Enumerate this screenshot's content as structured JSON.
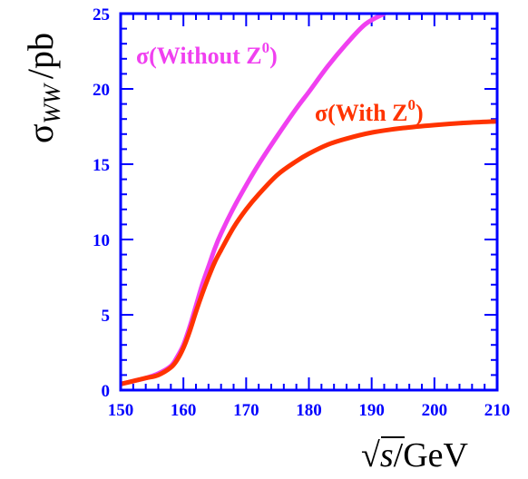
{
  "chart_data": {
    "type": "line",
    "title": "",
    "xlabel": "√s/GeV",
    "ylabel": "σWW /pb",
    "xlim": [
      150,
      210
    ],
    "ylim": [
      0,
      25
    ],
    "x_ticks": [
      150,
      160,
      170,
      180,
      190,
      200,
      210
    ],
    "y_ticks": [
      0,
      5,
      10,
      15,
      20,
      25
    ],
    "grid": false,
    "legend": "inline labels next to curves",
    "series": [
      {
        "name": "σ(Without Z⁰)",
        "color": "#f040f0",
        "x": [
          150,
          152,
          154,
          156,
          158,
          159,
          160,
          161,
          162,
          163,
          164,
          165,
          166,
          168,
          170,
          172,
          175,
          178,
          180,
          183,
          186,
          189,
          192
        ],
        "y": [
          0.4,
          0.6,
          0.8,
          1.1,
          1.6,
          2.2,
          3.0,
          4.2,
          5.6,
          7.0,
          8.2,
          9.4,
          10.4,
          12.1,
          13.6,
          15.0,
          16.9,
          18.7,
          19.8,
          21.5,
          23.0,
          24.3,
          25.0
        ]
      },
      {
        "name": "σ(With Z⁰)",
        "color": "#ff3300",
        "x": [
          150,
          152,
          154,
          156,
          158,
          159,
          160,
          161,
          162,
          163,
          164,
          165,
          166,
          168,
          170,
          172,
          175,
          178,
          180,
          183,
          186,
          190,
          195,
          200,
          205,
          210
        ],
        "y": [
          0.4,
          0.6,
          0.8,
          1.0,
          1.5,
          2.0,
          2.8,
          3.9,
          5.2,
          6.4,
          7.5,
          8.5,
          9.3,
          10.8,
          12.0,
          13.0,
          14.3,
          15.2,
          15.7,
          16.3,
          16.7,
          17.1,
          17.4,
          17.6,
          17.75,
          17.85
        ]
      }
    ],
    "series_labels": {
      "without": {
        "main": "σ(Without Z",
        "sup": "0",
        "close": ")"
      },
      "with": {
        "main": "σ(With Z",
        "sup": "0",
        "close": ")"
      }
    },
    "ylabel_parts": {
      "sigma": "σ",
      "sub": "WW",
      "unit": "/pb"
    },
    "xlabel_parts": {
      "root": "√",
      "var": "s",
      "unit": "/GeV"
    },
    "frame_color": "#0000ff",
    "tick_label_color": "#0000ff"
  }
}
